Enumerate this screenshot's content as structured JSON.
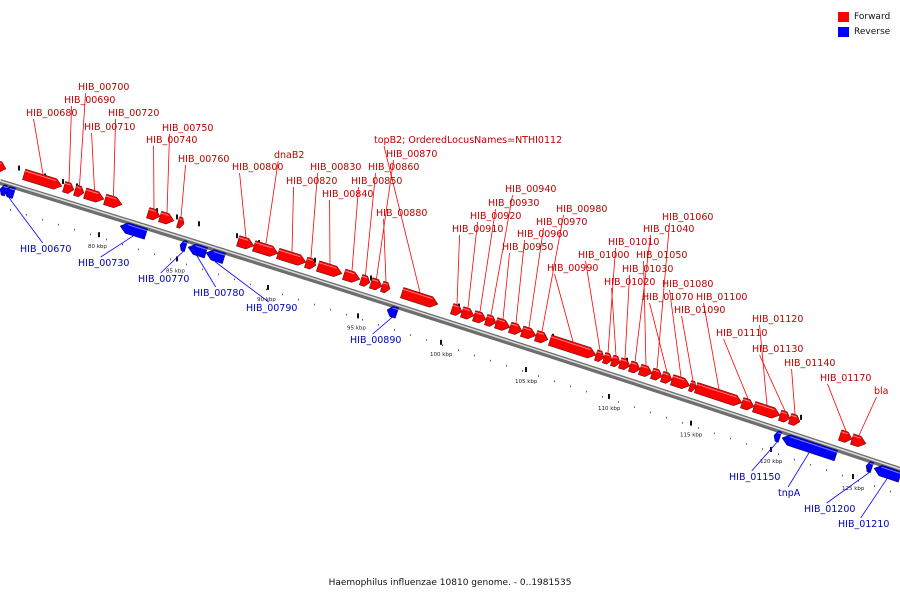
{
  "legend": {
    "forward_label": "Forward",
    "reverse_label": "Reverse",
    "forward_color": "#ff0000",
    "reverse_color": "#0000ff"
  },
  "footer": {
    "caption": "Haemophilus influenzae 10810 genome. - 0..1981535"
  },
  "scale_labels": [
    "80 kbp",
    "85 kbp",
    "90 kbp",
    "95 kbp",
    "100 kbp",
    "105 kbp",
    "110 kbp",
    "115 kbp",
    "120 kbp",
    "125 kbp"
  ],
  "forward_genes": [
    "HIB_00680",
    "HIB_00690",
    "HIB_00700",
    "HIB_00710",
    "HIB_00720",
    "HIB_00740",
    "HIB_00750",
    "HIB_00760",
    "HIB_00800",
    "dnaB2",
    "HIB_00820",
    "HIB_00830",
    "HIB_00840",
    "HIB_00850",
    "HIB_00860",
    "HIB_00870",
    "topB2; OrderedLocusNames=NTHI0112",
    "HIB_00880",
    "HIB_00910",
    "HIB_00920",
    "HIB_00930",
    "HIB_00940",
    "HIB_00950",
    "HIB_00960",
    "HIB_00970",
    "HIB_00980",
    "HIB_00990",
    "HIB_01000",
    "HIB_01010",
    "HIB_01020",
    "HIB_01030",
    "HIB_01040",
    "HIB_01050",
    "HIB_01060",
    "HIB_01070",
    "HIB_01080",
    "HIB_01090",
    "HIB_01100",
    "HIB_01110",
    "HIB_01120",
    "HIB_01130",
    "HIB_01140",
    "HIB_01170",
    "bla"
  ],
  "reverse_genes": [
    "HIB_00670",
    "HIB_00730",
    "HIB_00770",
    "HIB_00780",
    "HIB_00790",
    "HIB_00890",
    "HIB_01150",
    "tnpA",
    "HIB_01200",
    "HIB_01210"
  ]
}
